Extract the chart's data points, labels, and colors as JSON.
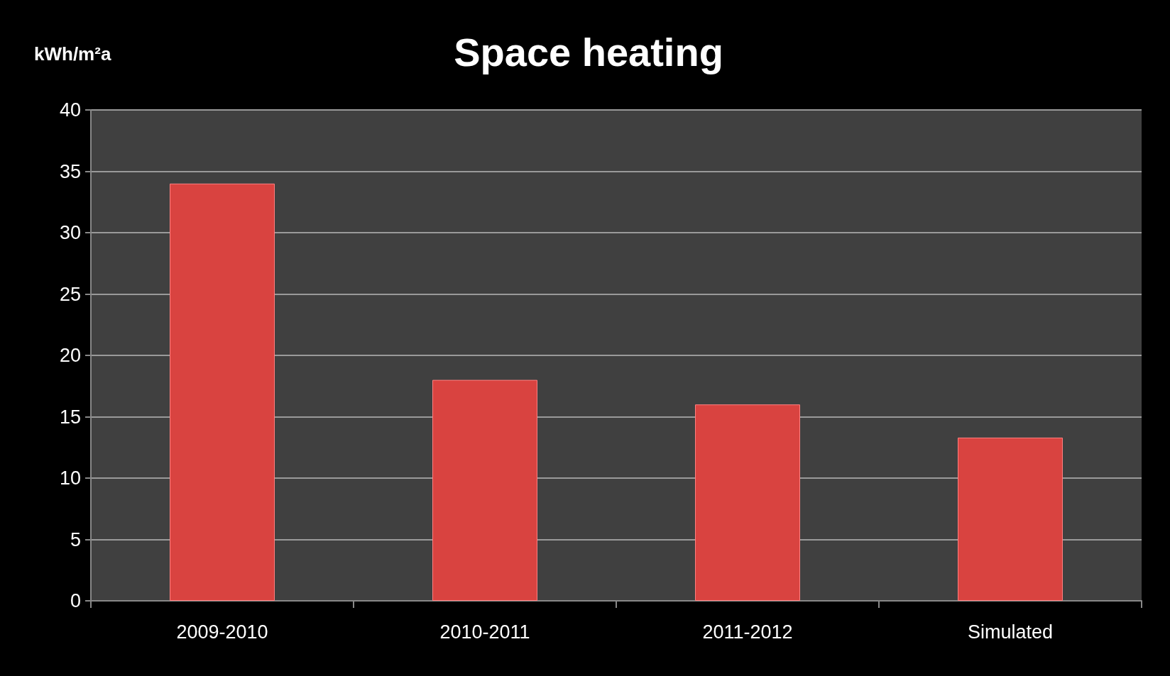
{
  "chart_data": {
    "type": "bar",
    "title": "Space heating",
    "ylabel": "kWh/m²a",
    "categories": [
      "2009-2010",
      "2010-2011",
      "2011-2012",
      "Simulated"
    ],
    "values": [
      34,
      18,
      16,
      13.3
    ],
    "color": "#d94340",
    "ylim": [
      0,
      40
    ],
    "yticks": [
      0,
      5,
      10,
      15,
      20,
      25,
      30,
      35,
      40
    ],
    "grid": "y"
  }
}
